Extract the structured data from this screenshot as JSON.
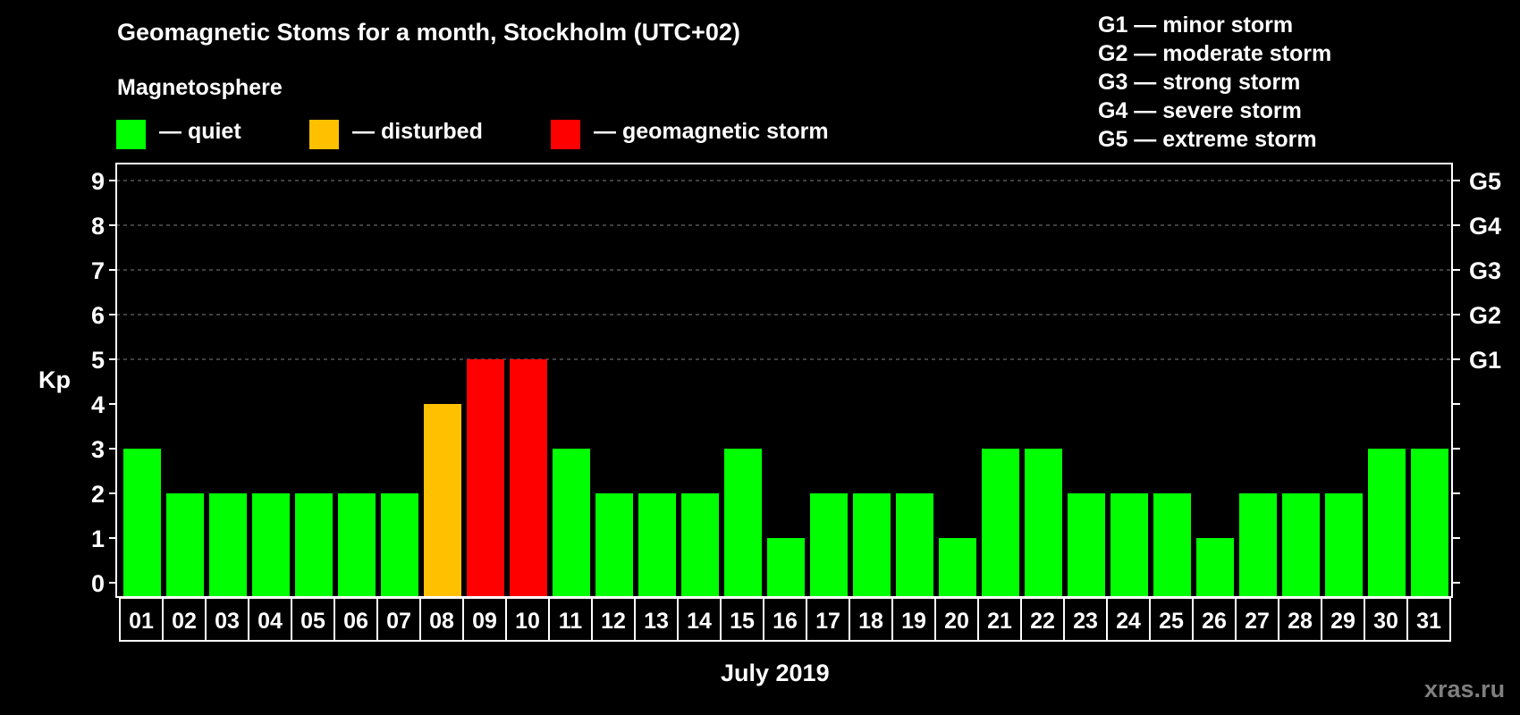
{
  "header": {
    "title": "Geomagnetic Stoms for a month, Stockholm (UTC+02)",
    "subtitle": "Magnetosphere"
  },
  "legend": {
    "items": [
      {
        "label": "— quiet",
        "color": "#00ff00"
      },
      {
        "label": "— disturbed",
        "color": "#ffc000"
      },
      {
        "label": "— geomagnetic storm",
        "color": "#ff0000"
      }
    ]
  },
  "storm_scale_legend": [
    "G1 — minor storm",
    "G2 — moderate storm",
    "G3 — strong storm",
    "G4 — severe storm",
    "G5 — extreme storm"
  ],
  "watermark": "xras.ru",
  "colors": {
    "background": "#000000",
    "axis": "#ffffff",
    "grid": "#808080",
    "quiet": "#00ff00",
    "disturbed": "#ffc000",
    "storm": "#ff0000",
    "watermark": "#7f7f7f"
  },
  "chart_data": {
    "type": "bar",
    "title": "Geomagnetic Stoms for a month, Stockholm (UTC+02)",
    "subtitle": "Magnetosphere",
    "xlabel": "July 2019",
    "ylabel": "Kp",
    "ylim": [
      0,
      9
    ],
    "yticks": [
      0,
      1,
      2,
      3,
      4,
      5,
      6,
      7,
      8,
      9
    ],
    "right_axis_ticks": [
      {
        "value": 5,
        "label": "G1"
      },
      {
        "value": 6,
        "label": "G2"
      },
      {
        "value": 7,
        "label": "G3"
      },
      {
        "value": 8,
        "label": "G4"
      },
      {
        "value": 9,
        "label": "G5"
      }
    ],
    "grid": {
      "horizontal_dashed_at": [
        5,
        6,
        7,
        8,
        9
      ]
    },
    "categories": [
      "01",
      "02",
      "03",
      "04",
      "05",
      "06",
      "07",
      "08",
      "09",
      "10",
      "11",
      "12",
      "13",
      "14",
      "15",
      "16",
      "17",
      "18",
      "19",
      "20",
      "21",
      "22",
      "23",
      "24",
      "25",
      "26",
      "27",
      "28",
      "29",
      "30",
      "31"
    ],
    "values": [
      3,
      2,
      2,
      2,
      2,
      2,
      2,
      4,
      5,
      5,
      3,
      2,
      2,
      2,
      3,
      1,
      2,
      2,
      2,
      1,
      3,
      3,
      2,
      2,
      2,
      1,
      2,
      2,
      2,
      3,
      3
    ],
    "status": [
      "quiet",
      "quiet",
      "quiet",
      "quiet",
      "quiet",
      "quiet",
      "quiet",
      "disturbed",
      "storm",
      "storm",
      "quiet",
      "quiet",
      "quiet",
      "quiet",
      "quiet",
      "quiet",
      "quiet",
      "quiet",
      "quiet",
      "quiet",
      "quiet",
      "quiet",
      "quiet",
      "quiet",
      "quiet",
      "quiet",
      "quiet",
      "quiet",
      "quiet",
      "quiet",
      "quiet"
    ],
    "legend": [
      {
        "label": "quiet",
        "color": "#00ff00"
      },
      {
        "label": "disturbed",
        "color": "#ffc000"
      },
      {
        "label": "geomagnetic storm",
        "color": "#ff0000"
      }
    ],
    "legend_position": "top"
  }
}
